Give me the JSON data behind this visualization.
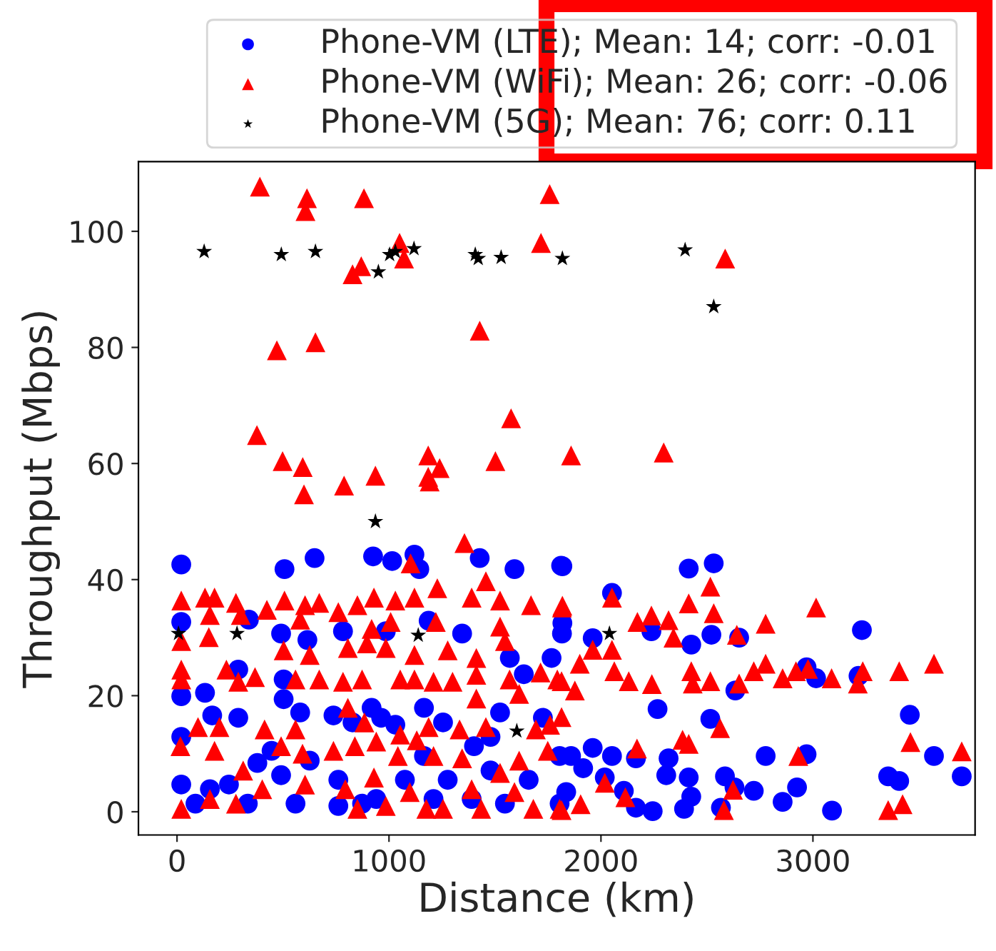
{
  "chart_data": {
    "type": "scatter",
    "xlabel": "Distance (km)",
    "ylabel": "Throughput (Mbps)",
    "xlim": [
      -182,
      3765
    ],
    "ylim": [
      -4,
      112
    ],
    "xticks": [
      0,
      1000,
      2000,
      3000
    ],
    "yticks": [
      0,
      20,
      40,
      60,
      80,
      100
    ],
    "grid": false,
    "legend": "top",
    "series": [
      {
        "name": "Phone-VM (LTE); Mean: 14; corr: -0.01",
        "color": "#0000ff",
        "marker": "circle",
        "x": [
          20,
          649,
          507,
          925,
          1015,
          1120,
          1143,
          1428,
          1592,
          1812,
          20,
          339,
          491,
          615,
          783,
          985,
          1187,
          1345,
          1570,
          1636,
          1767,
          1816,
          20,
          132,
          289,
          503,
          503,
          166,
          289,
          581,
          738,
          828,
          918,
          1030,
          1165,
          1255,
          1401,
          1479,
          1524,
          1726,
          1805,
          20,
          20,
          155,
          245,
          379,
          446,
          491,
          559,
          626,
          761,
          873,
          940,
          1075,
          1165,
          1277,
          1390,
          1479,
          1547,
          1659,
          1805,
          87,
          334,
          761,
          1210,
          963,
          1818,
          2414,
          2532,
          2052,
          1818,
          1961,
          2238,
          2426,
          2521,
          2652,
          3231,
          2970,
          3015,
          3215,
          2634,
          2267,
          2516,
          3457,
          1961,
          2052,
          2165,
          2319,
          2777,
          2970,
          3571,
          3702,
          3355,
          3407,
          1859,
          1916,
          2018,
          2108,
          2165,
          2244,
          2308,
          2414,
          2426,
          2392,
          2585,
          2630,
          2721,
          2857,
          2925,
          3090,
          2566,
          1836
        ],
        "values": [
          42.6,
          43.7,
          41.8,
          44.0,
          43.2,
          44.3,
          41.8,
          43.7,
          41.8,
          42.4,
          32.7,
          33.1,
          30.7,
          29.6,
          31.1,
          31.1,
          32.9,
          30.7,
          26.5,
          23.7,
          26.5,
          30.7,
          19.9,
          20.5,
          24.5,
          22.8,
          19.4,
          16.6,
          16.2,
          17.1,
          16.6,
          15.4,
          17.9,
          15.0,
          17.9,
          15.4,
          11.3,
          12.9,
          17.1,
          16.2,
          9.6,
          12.9,
          4.7,
          3.9,
          4.7,
          8.4,
          10.5,
          6.3,
          1.4,
          8.8,
          5.5,
          1.4,
          2.2,
          5.5,
          9.6,
          5.5,
          2.2,
          7.1,
          1.4,
          5.5,
          1.4,
          1.4,
          1.4,
          1.0,
          2.2,
          16.2,
          42.3,
          41.9,
          42.8,
          37.7,
          32.5,
          29.9,
          31.1,
          28.8,
          30.5,
          30.0,
          31.3,
          24.9,
          23.0,
          23.4,
          20.9,
          17.7,
          16.0,
          16.7,
          11.0,
          9.6,
          9.2,
          9.2,
          9.6,
          9.9,
          9.6,
          6.1,
          6.1,
          5.3,
          9.6,
          7.5,
          5.9,
          3.6,
          0.7,
          0.1,
          6.3,
          5.9,
          2.6,
          0.5,
          6.1,
          4.2,
          3.6,
          1.7,
          4.2,
          0.2,
          0.7,
          3.4
        ]
      },
      {
        "name": "Phone-VM (WiFi); Mean: 26; corr: -0.06",
        "color": "#ff0000",
        "marker": "triangle",
        "x": [
          391,
          613,
          606,
          882,
          1758,
          1050,
          1071,
          869,
          828,
          1717,
          2586,
          1428,
          471,
          653,
          1576,
          377,
          498,
          593,
          599,
          788,
          936,
          1185,
          1239,
          1185,
          1192,
          1502,
          1859,
          2296,
          20,
          132,
          177,
          278,
          424,
          507,
          604,
          671,
          761,
          851,
          929,
          1030,
          1120,
          1228,
          1356,
          1102,
          1390,
          1457,
          1524,
          1670,
          1816,
          155,
          301,
          581,
          918,
          1008,
          1221,
          20,
          150,
          503,
          626,
          806,
          896,
          985,
          1120,
          1277,
          1412,
          1524,
          1547,
          20,
          20,
          233,
          289,
          368,
          559,
          671,
          783,
          873,
          1053,
          1120,
          1210,
          1300,
          1412,
          1569,
          1715,
          1794,
          1614,
          1412,
          99,
          200,
          413,
          559,
          806,
          884,
          1053,
          1187,
          1333,
          1457,
          1693,
          1760,
          16,
          177,
          312,
          491,
          592,
          738,
          839,
          940,
          1042,
          1131,
          1210,
          1345,
          1524,
          1614,
          1749,
          155,
          278,
          402,
          604,
          794,
          851,
          929,
          985,
          1098,
          1176,
          1255,
          1390,
          1435,
          1592,
          1681,
          1805,
          20,
          1818,
          2052,
          2414,
          2516,
          2532,
          2172,
          2238,
          2319,
          2342,
          2641,
          2777,
          3015,
          1961,
          2052,
          1900,
          1814,
          1877,
          2063,
          2131,
          2240,
          2426,
          2433,
          2516,
          2652,
          2721,
          2777,
          2857,
          2920,
          2977,
          3088,
          3235,
          3212,
          3407,
          3571,
          1814,
          2562,
          2385,
          2414,
          2170,
          2931,
          3460,
          3702,
          2018,
          2115,
          2623,
          1904,
          1814,
          2580,
          3355,
          3423
        ],
        "values": [
          107.7,
          105.7,
          103.5,
          105.7,
          106.4,
          98,
          95.3,
          94,
          92.6,
          98,
          95.3,
          82.9,
          79.5,
          80.9,
          67.8,
          64.9,
          60.4,
          59.4,
          54.7,
          56.2,
          57.9,
          61.4,
          59.2,
          57.7,
          56.9,
          60.4,
          61.4,
          61.9,
          36.4,
          36.9,
          36.9,
          36.0,
          34.8,
          36.4,
          35.6,
          36.0,
          34.4,
          35.6,
          36.9,
          36.4,
          36.9,
          38.5,
          46.3,
          42.8,
          36.9,
          39.7,
          36.4,
          35.6,
          35.2,
          33.9,
          33.9,
          33.1,
          31.5,
          32.7,
          32.7,
          29.4,
          30.1,
          27.8,
          27.0,
          28.2,
          29.0,
          28.2,
          27.0,
          27.8,
          26.5,
          31.9,
          29.4,
          24.5,
          22.8,
          24.5,
          22.4,
          23.2,
          22.8,
          22.8,
          22.4,
          22.8,
          22.8,
          22.8,
          22.4,
          22.4,
          23.6,
          22.8,
          24.0,
          22.8,
          20.3,
          19.5,
          14.6,
          14.6,
          14.2,
          14.2,
          17.9,
          15.4,
          13.3,
          14.6,
          14.2,
          14.6,
          14.2,
          15.0,
          11.3,
          10.5,
          7.1,
          11.3,
          10.0,
          10.5,
          11.3,
          12.1,
          9.6,
          12.3,
          9.6,
          9.2,
          6.7,
          8.8,
          10.5,
          2.2,
          1.4,
          3.9,
          4.7,
          3.9,
          0.5,
          5.9,
          1.0,
          3.4,
          0.5,
          0.5,
          3.9,
          0.5,
          3.4,
          0.5,
          0.5,
          0.5,
          35.5,
          36.9,
          35.9,
          38.8,
          34.2,
          32.7,
          33.8,
          33.0,
          30.0,
          30.5,
          32.4,
          35.2,
          27.9,
          27.9,
          25.5,
          22.5,
          20.9,
          24.2,
          22.5,
          22.0,
          24.2,
          22.1,
          22.5,
          22.1,
          24.2,
          25.5,
          23.0,
          24.2,
          24.6,
          23.0,
          24.2,
          22.1,
          24.2,
          25.5,
          16.3,
          14.4,
          12.4,
          11.7,
          10.9,
          9.6,
          12.0,
          10.4,
          5.0,
          2.5,
          3.8,
          1.3,
          0.3,
          0.3,
          0.3,
          1.3
        ]
      },
      {
        "name": "Phone-VM (5G); Mean: 76; corr: 0.11",
        "color": "#000000",
        "marker": "star",
        "x": [
          128,
          492,
          653,
          950,
          1003,
          1030,
          1118,
          1407,
          1421,
          1529,
          1818,
          2397,
          2532,
          936,
          7,
          283,
          1138,
          1603,
          2040
        ],
        "values": [
          96.5,
          96,
          96.5,
          93,
          96,
          96.5,
          97,
          96,
          95.3,
          95.5,
          95.3,
          96.8,
          87,
          50,
          30.7,
          30.7,
          30.4,
          13.9,
          30.7
        ]
      }
    ]
  }
}
